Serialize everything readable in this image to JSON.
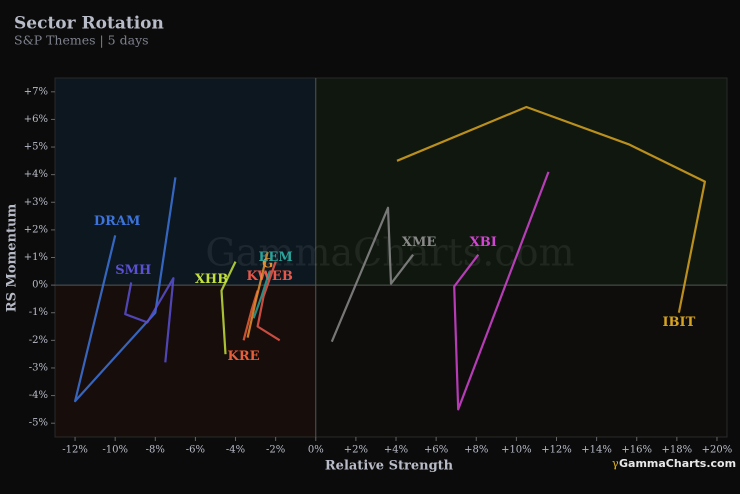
{
  "chart_data": {
    "type": "line",
    "title": "Sector Rotation",
    "subtitle": "S&P Themes | 5 days",
    "x_label": "Relative Strength",
    "y_label": "RS Momentum",
    "watermark": "GammaCharts.com",
    "brand_mark": "γ",
    "brand": "GammaCharts.com",
    "xlim": [
      -13,
      20.5
    ],
    "ylim": [
      -5.5,
      7.5
    ],
    "xticks": [
      {
        "value": -12,
        "label": "-12%"
      },
      {
        "value": -10,
        "label": "-10%"
      },
      {
        "value": -8,
        "label": "-8%"
      },
      {
        "value": -6,
        "label": "-6%"
      },
      {
        "value": -4,
        "label": "-4%"
      },
      {
        "value": -2,
        "label": "-2%"
      },
      {
        "value": 0,
        "label": "0%"
      },
      {
        "value": 2,
        "label": "+2%"
      },
      {
        "value": 4,
        "label": "+4%"
      },
      {
        "value": 6,
        "label": "+6%"
      },
      {
        "value": 8,
        "label": "+8%"
      },
      {
        "value": 10,
        "label": "+10%"
      },
      {
        "value": 12,
        "label": "+12%"
      },
      {
        "value": 14,
        "label": "+14%"
      },
      {
        "value": 16,
        "label": "+16%"
      },
      {
        "value": 18,
        "label": "+18%"
      },
      {
        "value": 20,
        "label": "+20%"
      }
    ],
    "yticks": [
      {
        "value": -5,
        "label": "-5%"
      },
      {
        "value": -4,
        "label": "-4%"
      },
      {
        "value": -3,
        "label": "-3%"
      },
      {
        "value": -2,
        "label": "-2%"
      },
      {
        "value": -1,
        "label": "-1%"
      },
      {
        "value": 0,
        "label": "0%"
      },
      {
        "value": 1,
        "label": "+1%"
      },
      {
        "value": 2,
        "label": "+2%"
      },
      {
        "value": 3,
        "label": "+3%"
      },
      {
        "value": 4,
        "label": "+4%"
      },
      {
        "value": 5,
        "label": "+5%"
      },
      {
        "value": 6,
        "label": "+6%"
      },
      {
        "value": 7,
        "label": "+7%"
      }
    ],
    "series": [
      {
        "name": "DRAM",
        "color": "#3d74dc",
        "x": [
          -7.0,
          -8.0,
          -12.0,
          -10.0
        ],
        "values": [
          3.9,
          -1.0,
          -4.2,
          1.8
        ]
      },
      {
        "name": "SMH",
        "color": "#5b50d4",
        "x": [
          -7.5,
          -7.1,
          -8.4,
          -9.5,
          -9.2
        ],
        "values": [
          -2.8,
          0.25,
          -1.35,
          -1.05,
          0.1
        ]
      },
      {
        "name": "XHB",
        "color": "#c4e03c",
        "x": [
          -4.5,
          -4.7,
          -4.0
        ],
        "values": [
          -2.5,
          -0.2,
          0.85
        ]
      },
      {
        "name": "KWEB",
        "color": "#e8584a",
        "x": [
          -1.8,
          -2.9,
          -2.6,
          -2.0
        ],
        "values": [
          -2.0,
          -1.5,
          -0.4,
          0.85
        ]
      },
      {
        "name": "KRE",
        "color": "#e8603a",
        "x": [
          -2.9,
          -3.2,
          -3.6
        ],
        "values": [
          -0.2,
          -0.9,
          -2.0
        ]
      },
      {
        "name": "G",
        "color": "#e89030",
        "x": [
          -3.4,
          -3.0,
          -2.4
        ],
        "values": [
          -1.9,
          -0.6,
          1.2
        ]
      },
      {
        "name": "EEM",
        "color": "#2aa39a",
        "x": [
          -3.1,
          -2.7,
          -2.3
        ],
        "values": [
          -1.2,
          -0.4,
          0.5
        ]
      },
      {
        "name": "XME",
        "color": "#8a8a8a",
        "x": [
          0.8,
          3.6,
          3.75,
          4.85
        ],
        "values": [
          -2.05,
          2.8,
          0.05,
          1.1
        ]
      },
      {
        "name": "XBI",
        "color": "#d444d4",
        "x": [
          11.6,
          7.1,
          6.9,
          8.1
        ],
        "values": [
          4.1,
          -4.5,
          -0.05,
          1.1
        ]
      },
      {
        "name": "IBIT",
        "color": "#d8a420",
        "x": [
          4.05,
          10.5,
          15.6,
          19.4,
          18.1
        ],
        "values": [
          4.5,
          6.45,
          5.1,
          3.75,
          -1.0
        ]
      }
    ]
  }
}
